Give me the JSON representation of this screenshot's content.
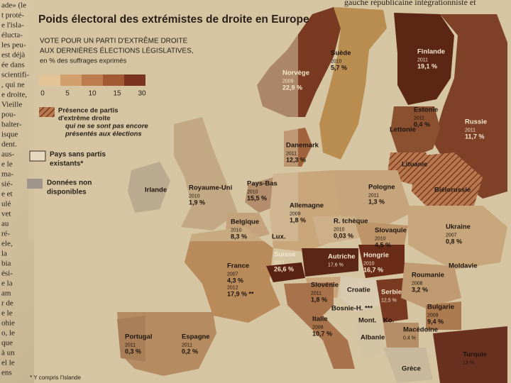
{
  "header_fragment": "gauche républicaine intégrationniste et",
  "side_text": [
    "ade» (le",
    "t proté-",
    "e l'isla-",
    "élucta-",
    "les peu-",
    "est déjà",
    "ée dans",
    "scientifi-",
    ", qui ne",
    "e droite,",
    "Vieille",
    "pou-",
    "balter-",
    "isque",
    "dent.",
    "aus-",
    "e le",
    "ma-",
    "sié-",
    "e et",
    "ulé",
    "vet",
    "au",
    "ré-",
    "ele,",
    "la",
    "bia",
    "ési-",
    "e la",
    "am",
    "r de",
    "e le",
    "ohie",
    "o, le",
    "que",
    "à un",
    "el le",
    "ens"
  ],
  "title": "Poids électoral des extrémistes de droite en Europe",
  "subtitle": [
    "VOTE POUR UN PARTI D'EXTRÊME DROITE",
    "AUX DERNIÈRES ÉLECTIONS LÉGISLATIVES,",
    "en % des suffrages exprimés"
  ],
  "legend": {
    "scale": [
      "0",
      "5",
      "10",
      "15",
      "30"
    ],
    "hatched": [
      "Présence de partis",
      "d'extrême droite",
      "qui ne se sont pas encore",
      "présentés aux élections"
    ],
    "none": [
      "Pays sans partis",
      "existants*"
    ],
    "na": [
      "Données non",
      "disponibles"
    ]
  },
  "countries": [
    {
      "lines": [
        "Norvège",
        "2009",
        "22,9 %"
      ]
    },
    {
      "lines": [
        "Suède",
        "2010",
        "5,7 %"
      ]
    },
    {
      "lines": [
        "Finlande",
        "2011",
        "19,1 %"
      ]
    },
    {
      "lines": [
        "Estonie",
        "2011",
        "0,4 %"
      ]
    },
    {
      "lines": [
        "Russie",
        "2011",
        "11,7 %"
      ]
    },
    {
      "lines": [
        "Lettonie"
      ]
    },
    {
      "lines": [
        "Lituanie"
      ]
    },
    {
      "lines": [
        "Danemark",
        "2011",
        "12,3 %"
      ]
    },
    {
      "lines": [
        "Irlande"
      ]
    },
    {
      "lines": [
        "Royaume-Uni",
        "2010",
        "1,9 %"
      ]
    },
    {
      "lines": [
        "Pays-Bas",
        "2010",
        "15,5 %"
      ]
    },
    {
      "lines": [
        "Allemagne",
        "2009",
        "1,8 %"
      ]
    },
    {
      "lines": [
        "Pologne",
        "2011",
        "1,3 %"
      ]
    },
    {
      "lines": [
        "Biélorussie"
      ]
    },
    {
      "lines": [
        "Belgique",
        "2010",
        "8,3 %"
      ]
    },
    {
      "lines": [
        "Lux."
      ]
    },
    {
      "lines": [
        "R. tchèque",
        "2010",
        "0,03 %"
      ]
    },
    {
      "lines": [
        "Slovaquie",
        "2010",
        "4,5 %"
      ]
    },
    {
      "lines": [
        "Ukraine",
        "2007",
        "0,8 %"
      ]
    },
    {
      "lines": [
        "France",
        "2007",
        "4,3 %",
        "2012",
        "17,9 % **"
      ]
    },
    {
      "lines": [
        "Suisse",
        "2011",
        "26,6 %"
      ]
    },
    {
      "lines": [
        "Autriche",
        "17,6 %"
      ]
    },
    {
      "lines": [
        "Hongrie",
        "2010",
        "16,7 %"
      ]
    },
    {
      "lines": [
        "Slovénie",
        "2011",
        "1,8 %"
      ]
    },
    {
      "lines": [
        "Croatie"
      ]
    },
    {
      "lines": [
        "Roumanie",
        "2008",
        "3,2 %"
      ]
    },
    {
      "lines": [
        "Moldavie"
      ]
    },
    {
      "lines": [
        "Bosnie-H. ***"
      ]
    },
    {
      "lines": [
        "Serbie",
        "12,5 %"
      ]
    },
    {
      "lines": [
        "Bulgarie",
        "2009",
        "9,4 %"
      ]
    },
    {
      "lines": [
        "Mont."
      ]
    },
    {
      "lines": [
        "Ko."
      ]
    },
    {
      "lines": [
        "Italie",
        "2008",
        "10,7 %"
      ]
    },
    {
      "lines": [
        "Albanie"
      ]
    },
    {
      "lines": [
        "Macédoine",
        "0,4 %"
      ]
    },
    {
      "lines": [
        "Portugal",
        "2011",
        "0,3 %"
      ]
    },
    {
      "lines": [
        "Espagne",
        "2011",
        "0,2 %"
      ]
    },
    {
      "lines": [
        "Grèce"
      ]
    },
    {
      "lines": [
        "Turquie",
        "13 %"
      ]
    }
  ],
  "footnote": "* Y compris l'Islande"
}
